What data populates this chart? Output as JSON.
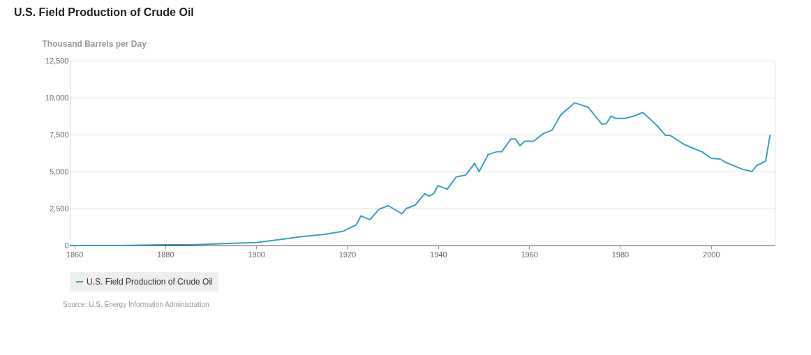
{
  "chart_data": {
    "type": "line",
    "title": "U.S. Field Production of Crude Oil",
    "ylabel": "Thousand Barrels per Day",
    "x": [
      1859,
      1870,
      1880,
      1885,
      1890,
      1895,
      1900,
      1904,
      1910,
      1915,
      1919,
      1922,
      1923,
      1925,
      1927,
      1929,
      1932,
      1933,
      1935,
      1937,
      1938,
      1939,
      1940,
      1942,
      1944,
      1946,
      1948,
      1949,
      1951,
      1953,
      1954,
      1956,
      1957,
      1958,
      1959,
      1961,
      1963,
      1965,
      1967,
      1970,
      1972,
      1973,
      1976,
      1977,
      1978,
      1979,
      1981,
      1983,
      1985,
      1988,
      1990,
      1991,
      1994,
      1997,
      1998,
      2000,
      2002,
      2003,
      2007,
      2009,
      2010,
      2012,
      2013
    ],
    "series": [
      {
        "name": "U.S. Field Production of Crude Oil",
        "color": "#3a9fc0",
        "values": [
          0,
          0,
          50,
          50,
          100,
          150,
          200,
          350,
          600,
          750,
          950,
          1400,
          2000,
          1750,
          2450,
          2700,
          2150,
          2500,
          2750,
          3500,
          3350,
          3500,
          4050,
          3800,
          4650,
          4750,
          5550,
          5000,
          6150,
          6350,
          6350,
          7200,
          7200,
          6750,
          7050,
          7050,
          7550,
          7800,
          8850,
          9650,
          9450,
          9350,
          8200,
          8250,
          8750,
          8600,
          8600,
          8750,
          9000,
          8150,
          7450,
          7450,
          6850,
          6450,
          6350,
          5900,
          5850,
          5650,
          5150,
          5000,
          5400,
          5700,
          7500
        ]
      }
    ],
    "xlim": [
      1859,
      2014
    ],
    "xticks": [
      1860,
      1880,
      1900,
      1920,
      1940,
      1960,
      1980,
      2000
    ],
    "ylim": [
      0,
      12500
    ],
    "yticks": [
      0,
      {
        "value": 2500,
        "label": "2,500"
      },
      {
        "value": 5000,
        "label": "5,000"
      },
      {
        "value": 7500,
        "label": "7,500"
      },
      {
        "value": 10000,
        "label": "10,000"
      },
      {
        "value": 12500,
        "label": "12,500"
      }
    ],
    "grid": "y",
    "legend": "bottom",
    "marker": "none",
    "line_style": "solid",
    "annotations": [
      "Source: U.S. Energy Information Administration"
    ]
  }
}
